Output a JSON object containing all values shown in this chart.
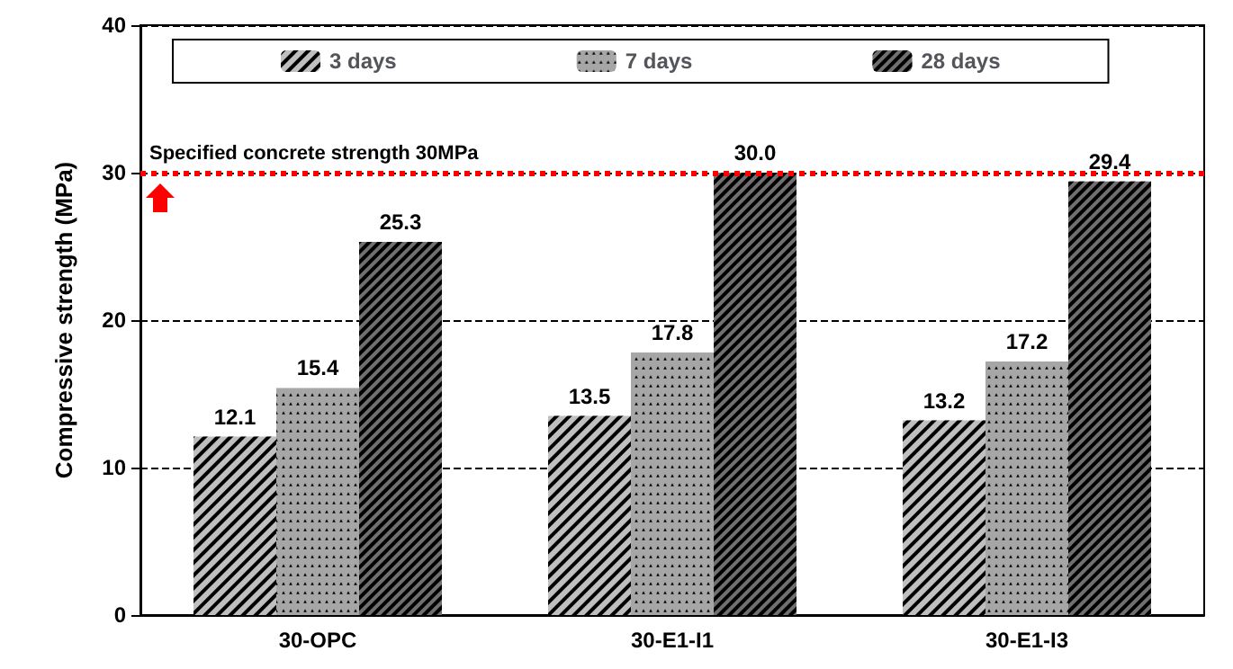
{
  "chart_data": {
    "type": "bar",
    "ylabel": "Compressive strength (MPa)",
    "categories": [
      "30-OPC",
      "30-E1-I1",
      "30-E1-I3"
    ],
    "series": [
      {
        "name": "3 days",
        "color": "#bfbfbf",
        "values": [
          12.1,
          13.5,
          13.2
        ],
        "value_labels": [
          "12.1",
          "13.5",
          "13.2"
        ]
      },
      {
        "name": "7 days",
        "color": "#a6a6a6",
        "values": [
          15.4,
          17.8,
          17.2
        ],
        "value_labels": [
          "15.4",
          "17.8",
          "17.2"
        ]
      },
      {
        "name": "28 days",
        "color": "#707070",
        "values": [
          25.3,
          30,
          29.4
        ],
        "value_labels": [
          "25.3",
          "30.0",
          "29.4"
        ]
      }
    ],
    "ylim": [
      0,
      40
    ],
    "yticks": [
      0,
      10,
      20,
      30,
      40
    ],
    "grid": "y",
    "legend": "top",
    "ref_lines": [
      {
        "axis": "y",
        "value": 30,
        "label": "Specified concrete strength 30MPa",
        "color": "#ff0000",
        "line_style": "dotted"
      }
    ]
  }
}
